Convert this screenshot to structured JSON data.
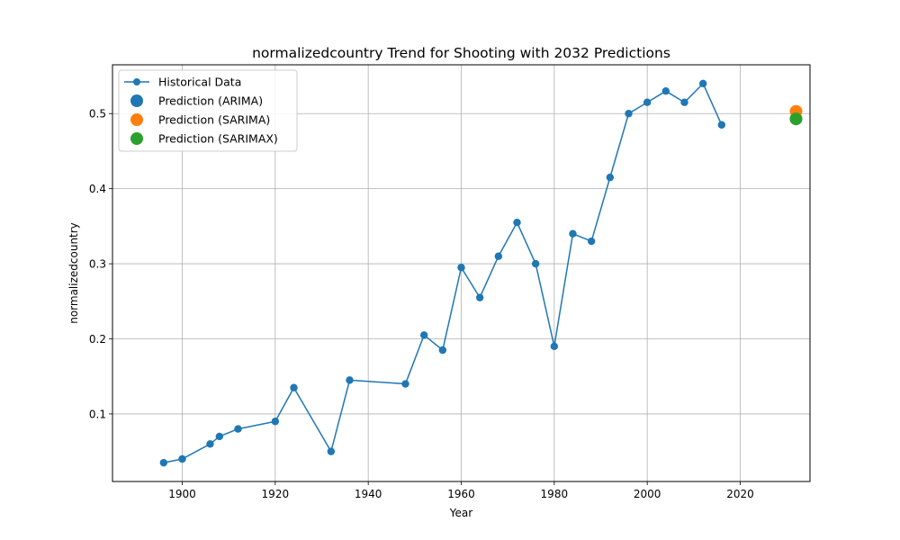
{
  "chart_data": {
    "type": "line",
    "title": "normalizedcountry Trend for Shooting with 2032 Predictions",
    "xlabel": "Year",
    "ylabel": "normalizedcountry",
    "xlim": [
      1885,
      2035
    ],
    "ylim": [
      0.01,
      0.565
    ],
    "xticks": [
      1900,
      1920,
      1940,
      1960,
      1980,
      2000,
      2020
    ],
    "yticks": [
      0.1,
      0.2,
      0.3,
      0.4,
      0.5
    ],
    "grid": true,
    "legend_position": "top-left",
    "series": [
      {
        "name": "Historical Data",
        "type": "line",
        "color": "#1f77b4",
        "x": [
          1896,
          1900,
          1906,
          1908,
          1912,
          1920,
          1924,
          1932,
          1936,
          1948,
          1952,
          1956,
          1960,
          1964,
          1968,
          1972,
          1976,
          1980,
          1984,
          1988,
          1992,
          1996,
          2000,
          2004,
          2008,
          2012,
          2016
        ],
        "y": [
          0.035,
          0.04,
          0.06,
          0.07,
          0.08,
          0.09,
          0.135,
          0.05,
          0.145,
          0.14,
          0.205,
          0.185,
          0.295,
          0.255,
          0.31,
          0.355,
          0.3,
          0.19,
          0.34,
          0.33,
          0.415,
          0.5,
          0.515,
          0.53,
          0.515,
          0.54,
          0.485
        ]
      },
      {
        "name": "Prediction (ARIMA)",
        "type": "scatter",
        "color": "#1f77b4",
        "x": [
          2032
        ],
        "y": [
          0.493
        ]
      },
      {
        "name": "Prediction (SARIMA)",
        "type": "scatter",
        "color": "#ff7f0e",
        "x": [
          2032
        ],
        "y": [
          0.503
        ]
      },
      {
        "name": "Prediction (SARIMAX)",
        "type": "scatter",
        "color": "#2ca02c",
        "x": [
          2032
        ],
        "y": [
          0.493
        ]
      }
    ]
  }
}
